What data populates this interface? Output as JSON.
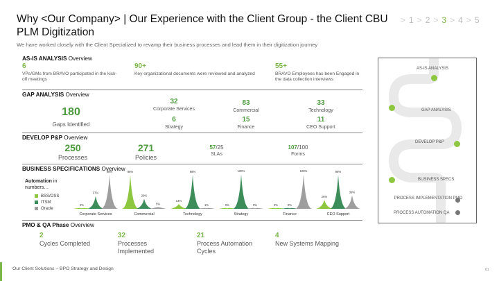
{
  "header": {
    "title": "Why <Our Company> | Our Experience with the Client Group - the Client CBU PLM Digitization",
    "subtitle": "We have worked closely with the Client Specialized to revamp their business processes and lead them in their digitization journey",
    "steps": [
      "1",
      "2",
      "3",
      "4",
      "5"
    ],
    "active_step": "3",
    "step_separator": ">"
  },
  "asis": {
    "label": "AS-IS ANALYSIS",
    "overview": "Overview",
    "items": [
      {
        "value": "6",
        "text": "VPs/GMs from BRAVO participated in the kick-off meetings"
      },
      {
        "value": "90+",
        "text": "Key organizational documents were reviewed and analyzed"
      },
      {
        "value": "55+",
        "text": "BRAVO Employees has been Engaged in the data collection interviews"
      }
    ]
  },
  "gap": {
    "label": "GAP ANALYSIS",
    "overview": "Overview",
    "gaps_value": "180",
    "gaps_label": "Gaps Identified",
    "cells": [
      {
        "value": "32",
        "label": "Corporate Services"
      },
      {
        "value": "83",
        "label": "Commercial"
      },
      {
        "value": "33",
        "label": "Technology"
      },
      {
        "value": "6",
        "label": "Strategy"
      },
      {
        "value": "15",
        "label": "Finance"
      },
      {
        "value": "11",
        "label": "CEO Support"
      }
    ]
  },
  "develop": {
    "label": "DEVELOP P&P",
    "overview": "Overview",
    "processes_value": "250",
    "processes_label": "Processes",
    "policies_value": "271",
    "policies_label": "Policies",
    "slas_value": "57",
    "slas_total": "/25",
    "slas_label": "SLAs",
    "forms_value": "107",
    "forms_total": "/100",
    "forms_label": "Forms"
  },
  "bizspec": {
    "label": "BUSINESS SPECIFICATIONS",
    "overview": "Overview",
    "automation_label": "Automation",
    "automation_in": "in",
    "automation_numbers": "numbers…"
  },
  "chart_data": {
    "type": "area",
    "title": "",
    "series": [
      {
        "name": "BSS/OSS",
        "color": "#8dc63f",
        "values": [
          0,
          98,
          14,
          0,
          0,
          26
        ]
      },
      {
        "name": "ITSM",
        "color": "#3c8d5a",
        "values": [
          37,
          29,
          98,
          100,
          0,
          98
        ]
      },
      {
        "name": "Oracle",
        "color": "#9e9e9e",
        "values": [
          98,
          5,
          1,
          0,
          100,
          39
        ]
      }
    ],
    "value_labels": [
      [
        "0%",
        "37%",
        "98%"
      ],
      [
        "98%",
        "29%",
        "5%"
      ],
      [
        "14%",
        "98%",
        "1%"
      ],
      [
        "0%",
        "100%",
        "0%"
      ],
      [
        "0%",
        "0%",
        "100%"
      ],
      [
        "26%",
        "98%",
        "39%"
      ]
    ],
    "categories": [
      "Corporate Services",
      "Commercial",
      "Technology",
      "Strategy",
      "Finance",
      "CEO Support"
    ],
    "ylim": [
      0,
      100
    ]
  },
  "pmo": {
    "label": "PMO & QA Phase",
    "overview": "Overview",
    "items": [
      {
        "value": "2",
        "text": "Cycles Completed"
      },
      {
        "value": "32",
        "text": "Processes Implemented"
      },
      {
        "value": "21",
        "text": "Process Automation Cycles"
      },
      {
        "value": "4",
        "text": "New Systems Mapping"
      }
    ]
  },
  "roadmap": {
    "items": [
      "AS-IS ANALYSIS",
      "GAP ANALYSIS",
      "DEVELOP P&P",
      "BUSINESS SPECS",
      "PROCESS IMPLEMENTATION PMO",
      "PROCESS AUTOMATION QA"
    ],
    "done_color": "#8dc63f",
    "todo_color": "#777777"
  },
  "footer": {
    "text": "Our Client Solutions – BPO Strategy and Design",
    "page": "61"
  }
}
